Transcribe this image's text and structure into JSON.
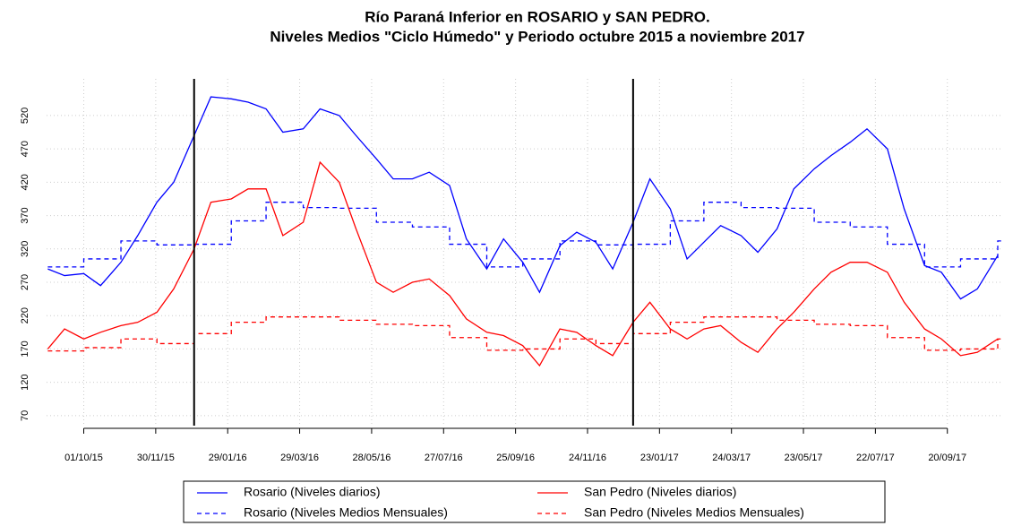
{
  "chart_data": {
    "type": "line",
    "title": "Río Paraná Inferior en ROSARIO y SAN PEDRO.",
    "subtitle": "Niveles Medios \"Ciclo Húmedo\" y Periodo octubre 2015 a noviembre 2017",
    "xlim": [
      "31/08/15",
      "04/11/17"
    ],
    "xticks": [
      "01/10/15",
      "30/11/15",
      "29/01/16",
      "29/03/16",
      "28/05/16",
      "27/07/16",
      "25/09/16",
      "24/11/16",
      "23/01/17",
      "24/03/17",
      "23/05/17",
      "22/07/17",
      "20/09/17"
    ],
    "ylim": [
      55,
      575
    ],
    "yticks": [
      70,
      120,
      170,
      220,
      270,
      320,
      370,
      420,
      470,
      520
    ],
    "grid": true,
    "vlines": [
      "01/01/16",
      "01/01/17"
    ],
    "series": [
      {
        "name": "Rosario (Niveles diarios)",
        "color": "#0000ff",
        "line_style": "solid",
        "x": [
          "01/09/15",
          "15/09/15",
          "01/10/15",
          "15/10/15",
          "01/11/15",
          "15/11/15",
          "01/12/15",
          "15/12/15",
          "01/01/16",
          "15/01/16",
          "01/02/16",
          "15/02/16",
          "01/03/16",
          "15/03/16",
          "01/04/16",
          "15/04/16",
          "01/05/16",
          "15/05/16",
          "01/06/16",
          "15/06/16",
          "01/07/16",
          "15/07/16",
          "01/08/16",
          "15/08/16",
          "01/09/16",
          "15/09/16",
          "01/10/16",
          "15/10/16",
          "01/11/16",
          "15/11/16",
          "01/12/16",
          "15/12/16",
          "01/01/17",
          "15/01/17",
          "01/02/17",
          "15/02/17",
          "01/03/17",
          "15/03/17",
          "01/04/17",
          "15/04/17",
          "01/05/17",
          "15/05/17",
          "01/06/17",
          "15/06/17",
          "01/07/17",
          "15/07/17",
          "01/08/17",
          "15/08/17",
          "01/09/17",
          "15/09/17",
          "01/10/17",
          "15/10/17",
          "01/11/17"
        ],
        "values": [
          290,
          280,
          283,
          265,
          300,
          340,
          390,
          420,
          490,
          548,
          545,
          540,
          530,
          495,
          500,
          530,
          520,
          490,
          455,
          425,
          425,
          435,
          415,
          335,
          290,
          335,
          300,
          255,
          325,
          345,
          330,
          290,
          360,
          425,
          380,
          305,
          330,
          355,
          340,
          315,
          350,
          410,
          440,
          460,
          480,
          500,
          470,
          380,
          295,
          285,
          245,
          260,
          310
        ]
      },
      {
        "name": "Rosario (Niveles Medios Mensuales)",
        "color": "#0000ff",
        "line_style": "dashed",
        "x": [
          "01/09/15",
          "01/10/15",
          "01/11/15",
          "01/12/15",
          "01/01/16",
          "01/02/16",
          "01/03/16",
          "01/04/16",
          "01/05/16",
          "01/06/16",
          "01/07/16",
          "01/08/16",
          "01/09/16",
          "01/10/16",
          "01/11/16",
          "01/12/16",
          "01/01/17",
          "01/02/17",
          "01/03/17",
          "01/04/17",
          "01/05/17",
          "01/06/17",
          "01/07/17",
          "01/08/17",
          "01/09/17",
          "01/10/17",
          "01/11/17"
        ],
        "values": [
          293,
          305,
          332,
          326,
          327,
          362,
          390,
          382,
          381,
          360,
          353,
          327,
          293,
          305,
          332,
          326,
          327,
          362,
          390,
          382,
          381,
          360,
          353,
          327,
          293,
          305,
          332
        ]
      },
      {
        "name": "San Pedro (Niveles diarios)",
        "color": "#ff0000",
        "line_style": "solid",
        "x": [
          "01/09/15",
          "15/09/15",
          "01/10/15",
          "15/10/15",
          "01/11/15",
          "15/11/15",
          "01/12/15",
          "15/12/15",
          "01/01/16",
          "15/01/16",
          "01/02/16",
          "15/02/16",
          "01/03/16",
          "15/03/16",
          "01/04/16",
          "15/04/16",
          "01/05/16",
          "15/05/16",
          "01/06/16",
          "15/06/16",
          "01/07/16",
          "15/07/16",
          "01/08/16",
          "15/08/16",
          "01/09/16",
          "15/09/16",
          "01/10/16",
          "15/10/16",
          "01/11/16",
          "15/11/16",
          "01/12/16",
          "15/12/16",
          "01/01/17",
          "15/01/17",
          "01/02/17",
          "15/02/17",
          "01/03/17",
          "15/03/17",
          "01/04/17",
          "15/04/17",
          "01/05/17",
          "15/05/17",
          "01/06/17",
          "15/06/17",
          "01/07/17",
          "15/07/17",
          "01/08/17",
          "15/08/17",
          "01/09/17",
          "15/09/17",
          "01/10/17",
          "15/10/17",
          "01/11/17"
        ],
        "values": [
          170,
          200,
          185,
          195,
          205,
          210,
          225,
          260,
          320,
          390,
          395,
          410,
          410,
          340,
          360,
          450,
          420,
          350,
          270,
          255,
          270,
          275,
          250,
          215,
          195,
          190,
          175,
          145,
          200,
          195,
          175,
          160,
          210,
          240,
          200,
          185,
          200,
          205,
          180,
          165,
          200,
          225,
          260,
          285,
          300,
          300,
          285,
          240,
          200,
          185,
          160,
          165,
          185
        ]
      },
      {
        "name": "San Pedro (Niveles Medios Mensuales)",
        "color": "#ff0000",
        "line_style": "dashed",
        "x": [
          "01/09/15",
          "01/10/15",
          "01/11/15",
          "01/12/15",
          "01/01/16",
          "01/02/16",
          "01/03/16",
          "01/04/16",
          "01/05/16",
          "01/06/16",
          "01/07/16",
          "01/08/16",
          "01/09/16",
          "01/10/16",
          "01/11/16",
          "01/12/16",
          "01/01/17",
          "01/02/17",
          "01/03/17",
          "01/04/17",
          "01/05/17",
          "01/06/17",
          "01/07/17",
          "01/08/17",
          "01/09/17",
          "01/10/17",
          "01/11/17"
        ],
        "values": [
          167,
          172,
          185,
          178,
          193,
          210,
          218,
          218,
          213,
          207,
          205,
          187,
          168,
          170,
          185,
          178,
          193,
          210,
          218,
          218,
          213,
          207,
          205,
          187,
          168,
          170,
          185
        ]
      }
    ]
  }
}
